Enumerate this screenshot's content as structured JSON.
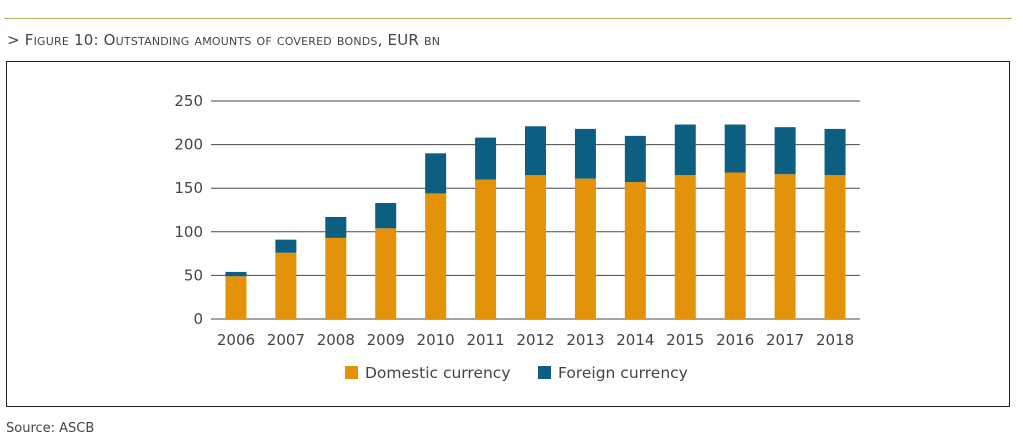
{
  "figure": {
    "prefix": "> ",
    "title": "Figure 10: Outstanding amounts of covered bonds, EUR bn"
  },
  "source": "Source: ASCB",
  "colors": {
    "domestic": "#e39209",
    "foreign": "#0d5f82",
    "grid": "#4a4a4a",
    "rule": "#c9a95f"
  },
  "chart_data": {
    "type": "bar",
    "stacked": true,
    "categories": [
      "2006",
      "2007",
      "2008",
      "2009",
      "2010",
      "2011",
      "2012",
      "2013",
      "2014",
      "2015",
      "2016",
      "2017",
      "2018"
    ],
    "series": [
      {
        "name": "Domestic currency",
        "values": [
          49,
          76,
          93,
          104,
          144,
          160,
          165,
          161,
          157,
          165,
          168,
          166,
          165
        ]
      },
      {
        "name": "Foreign currency",
        "values": [
          5,
          15,
          24,
          29,
          46,
          48,
          56,
          57,
          53,
          58,
          55,
          54,
          53
        ]
      }
    ],
    "ylim": [
      0,
      250
    ],
    "yticks": [
      0,
      50,
      100,
      150,
      200,
      250
    ],
    "grid": true,
    "legend_position": "bottom"
  }
}
